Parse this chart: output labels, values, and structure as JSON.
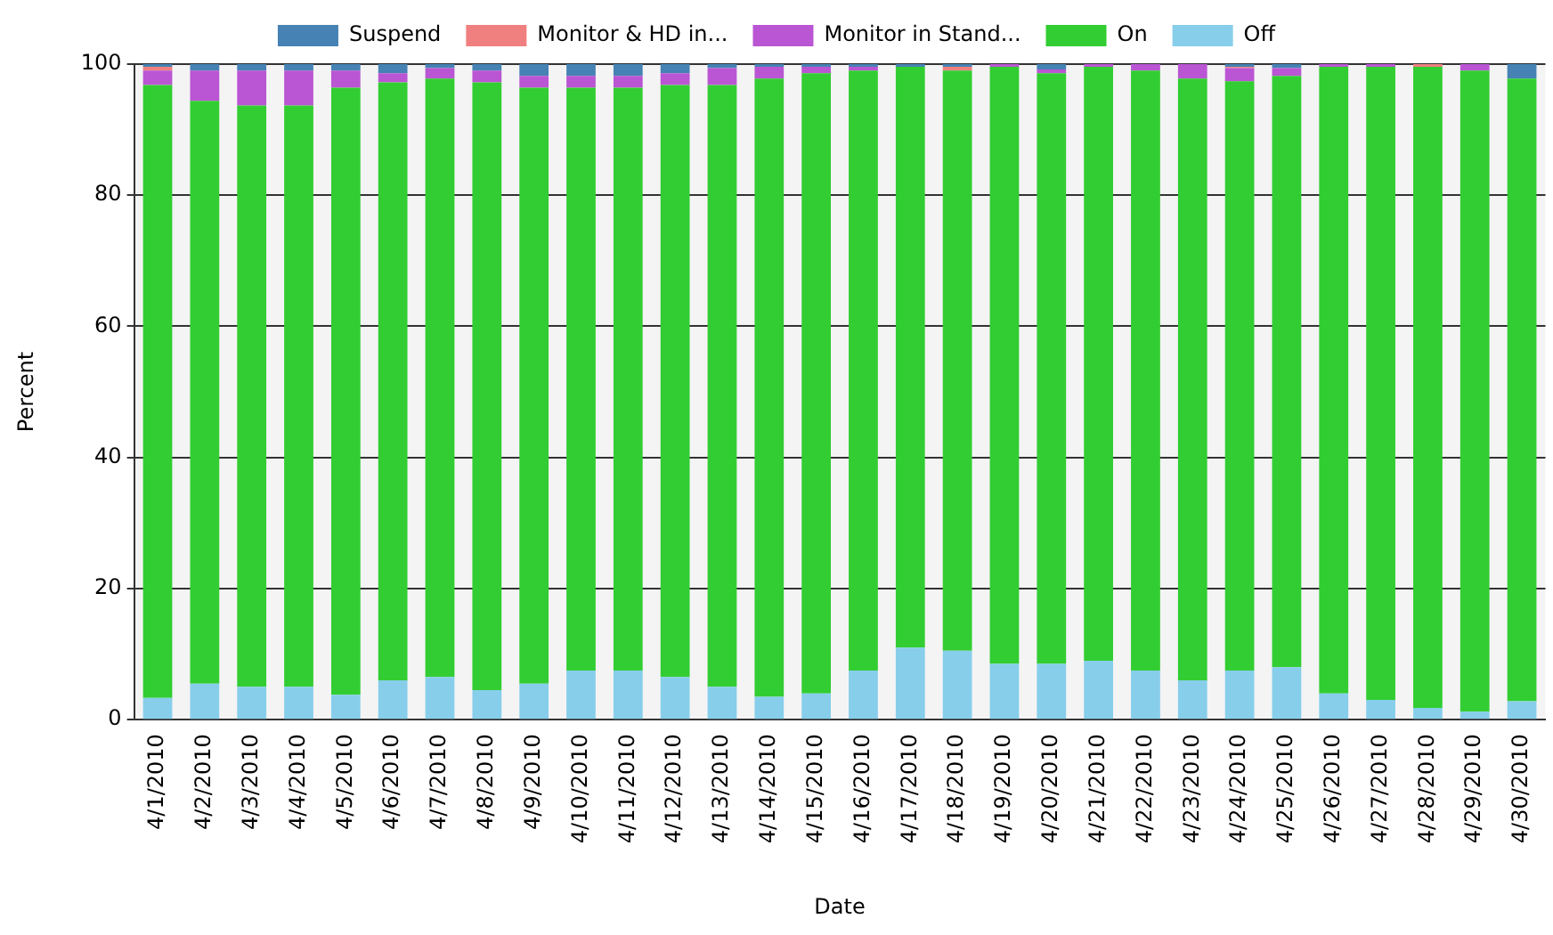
{
  "chart_data": {
    "type": "bar",
    "stacked": true,
    "xlabel": "Date",
    "ylabel": "Percent",
    "categories": [
      "4/1/2010",
      "4/2/2010",
      "4/3/2010",
      "4/4/2010",
      "4/5/2010",
      "4/6/2010",
      "4/7/2010",
      "4/8/2010",
      "4/9/2010",
      "4/10/2010",
      "4/11/2010",
      "4/12/2010",
      "4/13/2010",
      "4/14/2010",
      "4/15/2010",
      "4/16/2010",
      "4/17/2010",
      "4/18/2010",
      "4/19/2010",
      "4/20/2010",
      "4/21/2010",
      "4/22/2010",
      "4/23/2010",
      "4/24/2010",
      "4/25/2010",
      "4/26/2010",
      "4/27/2010",
      "4/28/2010",
      "4/29/2010",
      "4/30/2010"
    ],
    "series": [
      {
        "name": "Off",
        "color": "#87ceeb",
        "values": [
          3.3,
          5.5,
          5,
          5,
          3.8,
          6,
          6.5,
          4.5,
          5.5,
          7.5,
          7.5,
          6.5,
          5,
          3.5,
          4,
          7.5,
          11,
          10.5,
          8.5,
          8.5,
          9,
          7.5,
          6,
          7.5,
          8,
          4,
          3,
          1.8,
          1.2,
          2.8
        ]
      },
      {
        "name": "On",
        "color": "#32cd32",
        "values": [
          93.5,
          88.9,
          88.7,
          88.7,
          92.6,
          91.2,
          91.3,
          92.7,
          90.9,
          88.9,
          88.9,
          90.3,
          91.8,
          94.3,
          94.6,
          91.5,
          88.6,
          88.5,
          91.1,
          90.1,
          90.6,
          91.5,
          91.8,
          89.9,
          90.2,
          95.6,
          96.6,
          97.8,
          97.8,
          95
        ]
      },
      {
        "name": "Monitor in Stand...",
        "color": "#ba55d3",
        "values": [
          2.2,
          4.6,
          5.3,
          5.3,
          2.6,
          1.4,
          1.6,
          1.8,
          1.8,
          1.8,
          1.8,
          1.8,
          2.6,
          1.8,
          1,
          0.6,
          0,
          0,
          0.4,
          0.6,
          0.4,
          1,
          2.2,
          2,
          1.2,
          0.4,
          0.4,
          0,
          1,
          0
        ]
      },
      {
        "name": "Monitor & HD in...",
        "color": "#f08080",
        "values": [
          0.6,
          0,
          0,
          0,
          0,
          0,
          0,
          0,
          0,
          0,
          0,
          0,
          0,
          0,
          0,
          0,
          0,
          0.6,
          0,
          0,
          0,
          0,
          0,
          0.2,
          0,
          0,
          0,
          0.4,
          0,
          0
        ]
      },
      {
        "name": "Suspend",
        "color": "#4682b4",
        "values": [
          0.4,
          1,
          1,
          1,
          1,
          1.4,
          0.6,
          1,
          1.8,
          1.8,
          1.8,
          1.4,
          0.6,
          0.4,
          0.4,
          0.4,
          0.4,
          0.4,
          0,
          0.8,
          0,
          0,
          0,
          0.4,
          0.6,
          0,
          0,
          0,
          0,
          2.2
        ]
      }
    ],
    "ylim": [
      0,
      100
    ],
    "yticks": [
      0,
      20,
      40,
      60,
      80,
      100
    ],
    "grid": "y",
    "legend": "top"
  }
}
